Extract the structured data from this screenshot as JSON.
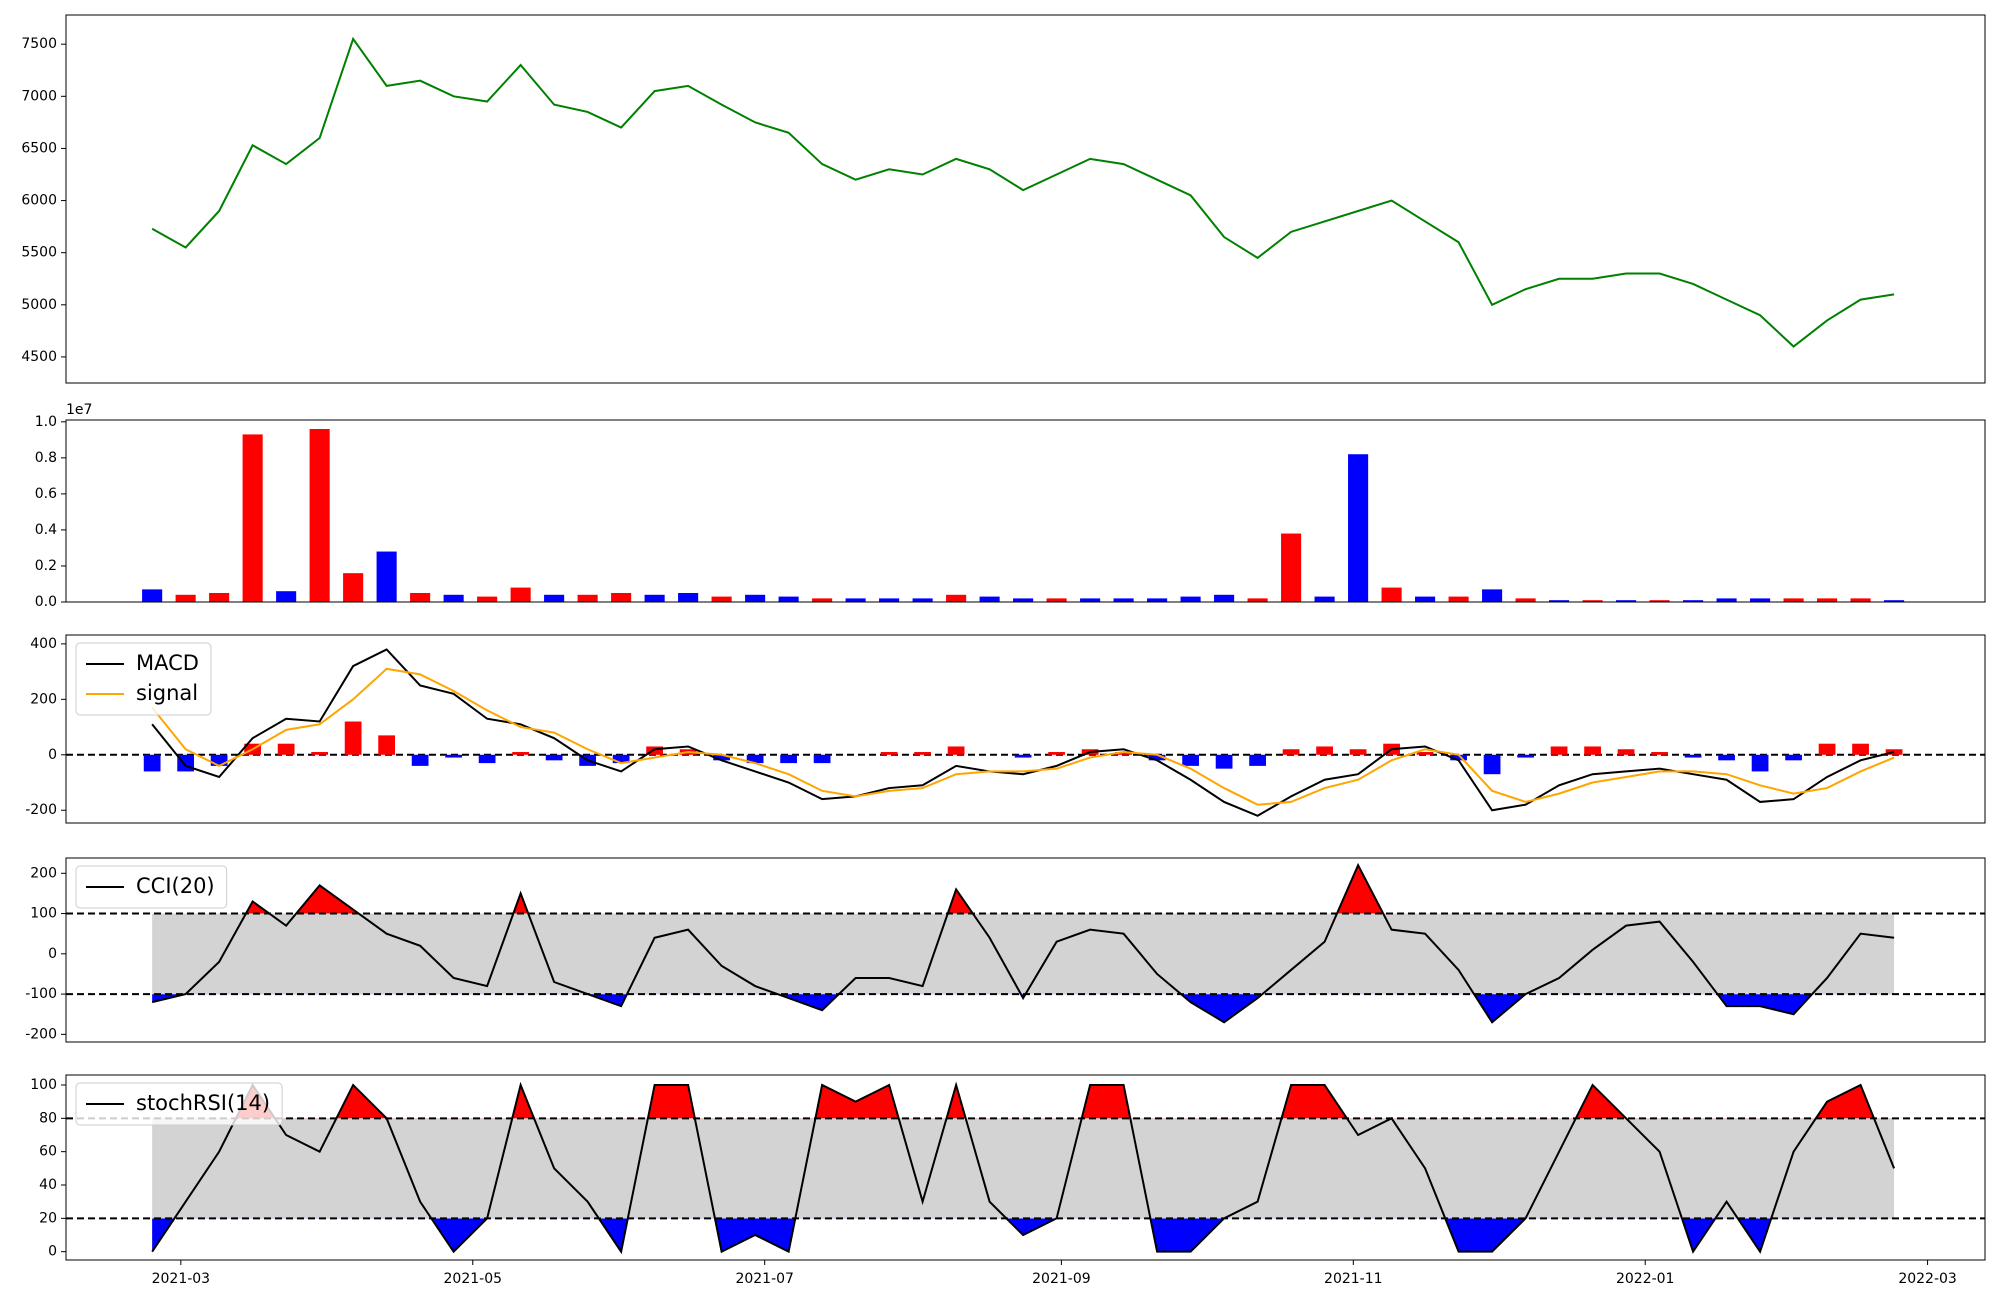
{
  "chart_data": [
    {
      "type": "line",
      "xlim": [
        "2021-02-05",
        "2022-03-13"
      ],
      "ylim": [
        4250,
        7780
      ],
      "yticks": [
        4500,
        5000,
        5500,
        6000,
        6500,
        7000,
        7500
      ],
      "x": [
        "2021-02-23",
        "2021-03-02",
        "2021-03-09",
        "2021-03-16",
        "2021-03-23",
        "2021-03-30",
        "2021-04-06",
        "2021-04-13",
        "2021-04-20",
        "2021-04-27",
        "2021-05-04",
        "2021-05-11",
        "2021-05-18",
        "2021-05-25",
        "2021-06-01",
        "2021-06-08",
        "2021-06-15",
        "2021-06-22",
        "2021-06-29",
        "2021-07-06",
        "2021-07-13",
        "2021-07-20",
        "2021-07-27",
        "2021-08-03",
        "2021-08-10",
        "2021-08-17",
        "2021-08-24",
        "2021-08-31",
        "2021-09-07",
        "2021-09-14",
        "2021-09-21",
        "2021-09-28",
        "2021-10-05",
        "2021-10-12",
        "2021-10-19",
        "2021-10-26",
        "2021-11-02",
        "2021-11-09",
        "2021-11-16",
        "2021-11-23",
        "2021-11-30",
        "2021-12-07",
        "2021-12-14",
        "2021-12-21",
        "2021-12-28",
        "2022-01-04",
        "2022-01-11",
        "2022-01-18",
        "2022-01-25",
        "2022-02-01",
        "2022-02-08",
        "2022-02-15",
        "2022-02-22"
      ],
      "series": [
        {
          "color": "#008000",
          "values": [
            5730,
            5550,
            5900,
            6530,
            6350,
            6600,
            7550,
            7100,
            7150,
            7000,
            6950,
            7300,
            6920,
            6850,
            6700,
            7050,
            7100,
            6920,
            6750,
            6650,
            6350,
            6200,
            6300,
            6250,
            6400,
            6300,
            6100,
            6250,
            6400,
            6350,
            6200,
            6050,
            5650,
            5450,
            5700,
            5800,
            5900,
            6000,
            5800,
            5600,
            5000,
            5150,
            5250,
            5250,
            5300,
            5300,
            5200,
            5050,
            4900,
            4600,
            4850,
            5050,
            5100
          ]
        }
      ]
    },
    {
      "type": "bar",
      "xlim": [
        "2021-02-05",
        "2022-03-13"
      ],
      "ylim": [
        0,
        1.01
      ],
      "offset_label": "1e7",
      "yticks": [
        {
          "value": 0,
          "label": "0.0"
        },
        0.2,
        0.4,
        0.6,
        0.8,
        {
          "value": 1,
          "label": "1.0"
        }
      ],
      "x": [
        "2021-02-23",
        "2021-03-02",
        "2021-03-09",
        "2021-03-16",
        "2021-03-23",
        "2021-03-30",
        "2021-04-06",
        "2021-04-13",
        "2021-04-20",
        "2021-04-27",
        "2021-05-04",
        "2021-05-11",
        "2021-05-18",
        "2021-05-25",
        "2021-06-01",
        "2021-06-08",
        "2021-06-15",
        "2021-06-22",
        "2021-06-29",
        "2021-07-06",
        "2021-07-13",
        "2021-07-20",
        "2021-07-27",
        "2021-08-03",
        "2021-08-10",
        "2021-08-17",
        "2021-08-24",
        "2021-08-31",
        "2021-09-07",
        "2021-09-14",
        "2021-09-21",
        "2021-09-28",
        "2021-10-05",
        "2021-10-12",
        "2021-10-19",
        "2021-10-26",
        "2021-11-02",
        "2021-11-09",
        "2021-11-16",
        "2021-11-23",
        "2021-11-30",
        "2021-12-07",
        "2021-12-14",
        "2021-12-21",
        "2021-12-28",
        "2022-01-04",
        "2022-01-11",
        "2022-01-18",
        "2022-01-25",
        "2022-02-01",
        "2022-02-08",
        "2022-02-15",
        "2022-02-22"
      ],
      "values": [
        0.07,
        0.04,
        0.05,
        0.93,
        0.06,
        0.96,
        0.16,
        0.28,
        0.05,
        0.04,
        0.03,
        0.08,
        0.04,
        0.04,
        0.05,
        0.04,
        0.05,
        0.03,
        0.04,
        0.03,
        0.02,
        0.02,
        0.02,
        0.02,
        0.04,
        0.03,
        0.02,
        0.02,
        0.02,
        0.02,
        0.02,
        0.03,
        0.04,
        0.02,
        0.38,
        0.03,
        0.82,
        0.08,
        0.03,
        0.03,
        0.07,
        0.02,
        0.01,
        0.01,
        0.01,
        0.01,
        0.01,
        0.02,
        0.02,
        0.02,
        0.02,
        0.02,
        0.01
      ],
      "colors": [
        "blue",
        "red",
        "red",
        "red",
        "blue",
        "red",
        "red",
        "blue",
        "red",
        "blue",
        "red",
        "red",
        "blue",
        "red",
        "red",
        "blue",
        "blue",
        "red",
        "blue",
        "blue",
        "red",
        "blue",
        "blue",
        "blue",
        "red",
        "blue",
        "blue",
        "red",
        "blue",
        "blue",
        "blue",
        "blue",
        "blue",
        "red",
        "red",
        "blue",
        "blue",
        "red",
        "blue",
        "red",
        "blue",
        "red",
        "blue",
        "red",
        "blue",
        "red",
        "blue",
        "blue",
        "blue",
        "red",
        "red",
        "red",
        "blue"
      ]
    },
    {
      "type": "line",
      "xlim": [
        "2021-02-05",
        "2022-03-13"
      ],
      "ylim": [
        -246,
        432
      ],
      "yticks": [
        -200,
        0,
        200,
        400
      ],
      "baseline": 0,
      "legend": "upper left",
      "hist_colors": {
        "positive": "red",
        "negative": "blue"
      },
      "x": [
        "2021-02-23",
        "2021-03-02",
        "2021-03-09",
        "2021-03-16",
        "2021-03-23",
        "2021-03-30",
        "2021-04-06",
        "2021-04-13",
        "2021-04-20",
        "2021-04-27",
        "2021-05-04",
        "2021-05-11",
        "2021-05-18",
        "2021-05-25",
        "2021-06-01",
        "2021-06-08",
        "2021-06-15",
        "2021-06-22",
        "2021-06-29",
        "2021-07-06",
        "2021-07-13",
        "2021-07-20",
        "2021-07-27",
        "2021-08-03",
        "2021-08-10",
        "2021-08-17",
        "2021-08-24",
        "2021-08-31",
        "2021-09-07",
        "2021-09-14",
        "2021-09-21",
        "2021-09-28",
        "2021-10-05",
        "2021-10-12",
        "2021-10-19",
        "2021-10-26",
        "2021-11-02",
        "2021-11-09",
        "2021-11-16",
        "2021-11-23",
        "2021-11-30",
        "2021-12-07",
        "2021-12-14",
        "2021-12-21",
        "2021-12-28",
        "2022-01-04",
        "2022-01-11",
        "2022-01-18",
        "2022-01-25",
        "2022-02-01",
        "2022-02-08",
        "2022-02-15",
        "2022-02-22"
      ],
      "histogram": [
        -60,
        -60,
        -40,
        40,
        40,
        10,
        120,
        70,
        -40,
        -10,
        -30,
        10,
        -20,
        -40,
        -30,
        30,
        20,
        -20,
        -30,
        -30,
        -30,
        0,
        10,
        10,
        30,
        0,
        -10,
        10,
        20,
        10,
        -20,
        -40,
        -50,
        -40,
        20,
        30,
        20,
        40,
        10,
        -20,
        -70,
        -10,
        30,
        30,
        20,
        10,
        -10,
        -20,
        -60,
        -20,
        40,
        40,
        20
      ],
      "series": [
        {
          "name": "MACD",
          "color": "#000000",
          "values": [
            110,
            -40,
            -80,
            60,
            130,
            120,
            320,
            380,
            250,
            220,
            130,
            110,
            60,
            -20,
            -60,
            20,
            30,
            -20,
            -60,
            -100,
            -160,
            -150,
            -120,
            -110,
            -40,
            -60,
            -70,
            -40,
            10,
            20,
            -20,
            -90,
            -170,
            -220,
            -150,
            -90,
            -70,
            20,
            30,
            -20,
            -200,
            -180,
            -110,
            -70,
            -60,
            -50,
            -70,
            -90,
            -170,
            -160,
            -80,
            -20,
            10
          ]
        },
        {
          "name": "signal",
          "color": "#ffa500",
          "values": [
            170,
            20,
            -40,
            20,
            90,
            110,
            200,
            310,
            290,
            230,
            160,
            100,
            80,
            20,
            -30,
            -10,
            10,
            0,
            -30,
            -70,
            -130,
            -150,
            -130,
            -120,
            -70,
            -60,
            -60,
            -50,
            -10,
            10,
            0,
            -50,
            -120,
            -180,
            -170,
            -120,
            -90,
            -20,
            20,
            0,
            -130,
            -170,
            -140,
            -100,
            -80,
            -60,
            -60,
            -70,
            -110,
            -140,
            -120,
            -60,
            -10
          ]
        }
      ]
    },
    {
      "type": "line",
      "xlim": [
        "2021-02-05",
        "2022-03-13"
      ],
      "ylim": [
        -219,
        238
      ],
      "yticks": [
        -200,
        -100,
        0,
        100,
        200
      ],
      "bands": [
        -100,
        100
      ],
      "legend": "upper left",
      "x": [
        "2021-02-23",
        "2021-03-02",
        "2021-03-09",
        "2021-03-16",
        "2021-03-23",
        "2021-03-30",
        "2021-04-06",
        "2021-04-13",
        "2021-04-20",
        "2021-04-27",
        "2021-05-04",
        "2021-05-11",
        "2021-05-18",
        "2021-05-25",
        "2021-06-01",
        "2021-06-08",
        "2021-06-15",
        "2021-06-22",
        "2021-06-29",
        "2021-07-06",
        "2021-07-13",
        "2021-07-20",
        "2021-07-27",
        "2021-08-03",
        "2021-08-10",
        "2021-08-17",
        "2021-08-24",
        "2021-08-31",
        "2021-09-07",
        "2021-09-14",
        "2021-09-21",
        "2021-09-28",
        "2021-10-05",
        "2021-10-12",
        "2021-10-19",
        "2021-10-26",
        "2021-11-02",
        "2021-11-09",
        "2021-11-16",
        "2021-11-23",
        "2021-11-30",
        "2021-12-07",
        "2021-12-14",
        "2021-12-21",
        "2021-12-28",
        "2022-01-04",
        "2022-01-11",
        "2022-01-18",
        "2022-01-25",
        "2022-02-01",
        "2022-02-08",
        "2022-02-15",
        "2022-02-22"
      ],
      "series": [
        {
          "name": "CCI(20)",
          "color": "#000000",
          "values": [
            -120,
            -100,
            -20,
            130,
            70,
            170,
            110,
            50,
            20,
            -60,
            -80,
            150,
            -70,
            -100,
            -130,
            40,
            60,
            -30,
            -80,
            -110,
            -140,
            -60,
            -60,
            -80,
            160,
            40,
            -110,
            30,
            60,
            50,
            -50,
            -120,
            -170,
            -110,
            -40,
            30,
            220,
            60,
            50,
            -40,
            -170,
            -100,
            -60,
            10,
            70,
            80,
            -20,
            -130,
            -130,
            -150,
            -60,
            50,
            40
          ]
        }
      ]
    },
    {
      "type": "line",
      "xlim": [
        "2021-02-05",
        "2022-03-13"
      ],
      "ylim": [
        -5,
        106
      ],
      "yticks": [
        0,
        20,
        40,
        60,
        80,
        100
      ],
      "bands": [
        20,
        80
      ],
      "legend": "upper left",
      "xticks": [
        {
          "value": "2021-03-01",
          "label": "2021-03"
        },
        {
          "value": "2021-05-01",
          "label": "2021-05"
        },
        {
          "value": "2021-07-01",
          "label": "2021-07"
        },
        {
          "value": "2021-09-01",
          "label": "2021-09"
        },
        {
          "value": "2021-11-01",
          "label": "2021-11"
        },
        {
          "value": "2022-01-01",
          "label": "2022-01"
        },
        {
          "value": "2022-03-01",
          "label": "2022-03"
        }
      ],
      "x": [
        "2021-02-23",
        "2021-03-02",
        "2021-03-09",
        "2021-03-16",
        "2021-03-23",
        "2021-03-30",
        "2021-04-06",
        "2021-04-13",
        "2021-04-20",
        "2021-04-27",
        "2021-05-04",
        "2021-05-11",
        "2021-05-18",
        "2021-05-25",
        "2021-06-01",
        "2021-06-08",
        "2021-06-15",
        "2021-06-22",
        "2021-06-29",
        "2021-07-06",
        "2021-07-13",
        "2021-07-20",
        "2021-07-27",
        "2021-08-03",
        "2021-08-10",
        "2021-08-17",
        "2021-08-24",
        "2021-08-31",
        "2021-09-07",
        "2021-09-14",
        "2021-09-21",
        "2021-09-28",
        "2021-10-05",
        "2021-10-12",
        "2021-10-19",
        "2021-10-26",
        "2021-11-02",
        "2021-11-09",
        "2021-11-16",
        "2021-11-23",
        "2021-11-30",
        "2021-12-07",
        "2021-12-14",
        "2021-12-21",
        "2021-12-28",
        "2022-01-04",
        "2022-01-11",
        "2022-01-18",
        "2022-01-25",
        "2022-02-01",
        "2022-02-08",
        "2022-02-15",
        "2022-02-22"
      ],
      "series": [
        {
          "name": "stochRSI(14)",
          "color": "#000000",
          "values": [
            0,
            30,
            60,
            100,
            70,
            60,
            100,
            80,
            30,
            0,
            20,
            100,
            50,
            30,
            0,
            100,
            100,
            0,
            10,
            0,
            100,
            90,
            100,
            30,
            100,
            30,
            10,
            20,
            100,
            100,
            0,
            0,
            20,
            30,
            100,
            100,
            70,
            80,
            50,
            0,
            0,
            20,
            60,
            100,
            80,
            60,
            0,
            30,
            0,
            60,
            90,
            100,
            50
          ]
        }
      ]
    }
  ]
}
